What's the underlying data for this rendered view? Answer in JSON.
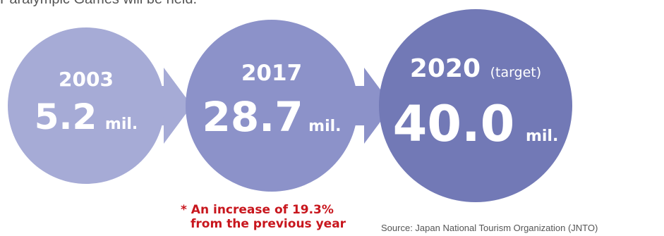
{
  "intro_text": "Paralympic Games will be held.",
  "colors": {
    "circle_2003": "#a6abd6",
    "circle_2017": "#8c92c9",
    "circle_2020": "#7279b6",
    "arrow_1": "#a6abd6",
    "arrow_2": "#8c92c9",
    "note": "#c8161d",
    "text_muted": "#555555"
  },
  "chart_data": {
    "type": "infographic",
    "unit": "mil.",
    "points": [
      {
        "year": "2003",
        "value_label": "5.2",
        "value": 5.2,
        "unit": "mil.",
        "qualifier": ""
      },
      {
        "year": "2017",
        "value_label": "28.7",
        "value": 28.7,
        "unit": "mil.",
        "qualifier": ""
      },
      {
        "year": "2020",
        "value_label": "40.0",
        "value": 40.0,
        "unit": "mil.",
        "qualifier": "(target)"
      }
    ],
    "annotation": {
      "line1": "* An increase of 19.3%",
      "line2": "from the previous year"
    },
    "source": "Source: Japan National Tourism Organization (JNTO)"
  }
}
